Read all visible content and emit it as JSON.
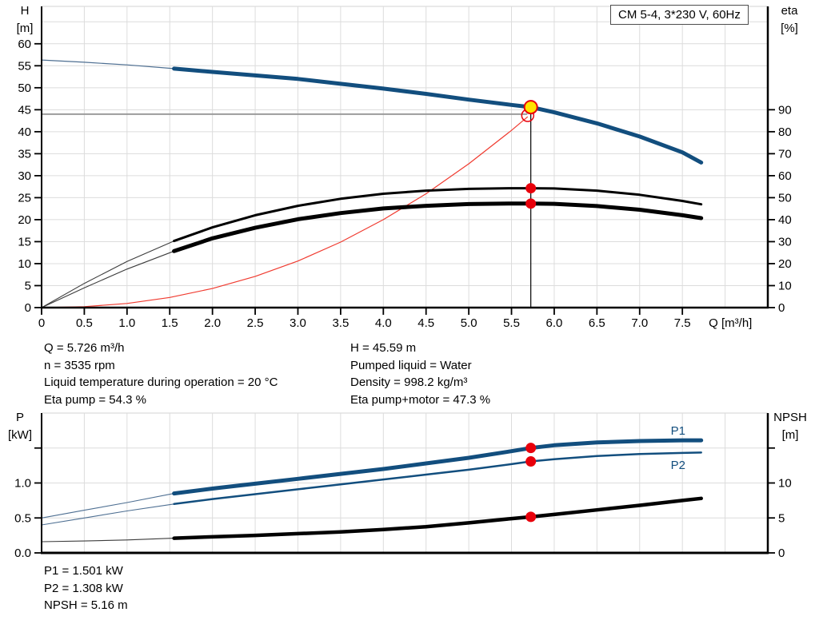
{
  "title_box": {
    "label": "CM 5-4, 3*230 V, 60Hz"
  },
  "info_top_left": [
    "Q = 5.726 m³/h",
    "n = 3535 rpm",
    "Liquid temperature during operation = 20 °C",
    "Eta pump = 54.3 %"
  ],
  "info_top_right": [
    "H = 45.59 m",
    "Pumped liquid = Water",
    "Density = 998.2 kg/m³",
    "Eta pump+motor = 47.3 %"
  ],
  "info_bottom": [
    "P1 = 1.501 kW",
    "P2 = 1.308 kW",
    "NPSH = 5.16 m"
  ],
  "colors": {
    "curve_blue": "#124e7e",
    "marker_red": "#e8000b",
    "system_red": "#f03b30",
    "duty_yellow": "#ffe400",
    "grid": "#dcdcdc",
    "gray_line": "#9b9b9b",
    "thin_black": "#3c3c3c"
  },
  "chart_data": [
    {
      "name": "qh-eta-chart",
      "type": "line",
      "title": "CM 5-4, 3*230 V, 60Hz",
      "x_axis": {
        "label": "Q [m³/h]",
        "min": 0,
        "max": 8.5,
        "ticks": [
          0,
          0.5,
          1,
          1.5,
          2,
          2.5,
          3,
          3.5,
          4,
          4.5,
          5,
          5.5,
          6,
          6.5,
          7,
          7.5
        ],
        "tick_labels": [
          "0",
          "0.5",
          "1.0",
          "1.5",
          "2.0",
          "2.5",
          "3.0",
          "3.5",
          "4.0",
          "4.5",
          "5.0",
          "5.5",
          "6.0",
          "6.5",
          "7.0",
          "7.5"
        ],
        "grid": [
          0.5,
          1,
          1.5,
          2,
          2.5,
          3,
          3.5,
          4,
          4.5,
          5,
          5.5,
          6,
          6.5,
          7,
          7.5,
          8
        ]
      },
      "y_left": {
        "label": "H [m]",
        "label_line1": "H",
        "label_line2": "[m]",
        "min": 0,
        "max": 68.5,
        "ticks": [
          0,
          5,
          10,
          15,
          20,
          25,
          30,
          35,
          40,
          45,
          50,
          55,
          60
        ],
        "tick_labels": [
          "0",
          "5",
          "10",
          "15",
          "20",
          "25",
          "30",
          "35",
          "40",
          "45",
          "50",
          "55",
          "60"
        ],
        "unlabeled_ticks": [],
        "grid": [
          5,
          10,
          15,
          20,
          25,
          30,
          35,
          40,
          45,
          50,
          55,
          60,
          65
        ]
      },
      "y_right": {
        "label": "eta [%]",
        "label_line1": "eta",
        "label_line2": "[%]",
        "min": 0,
        "max": 137,
        "ticks": [
          0,
          10,
          20,
          30,
          40,
          50,
          60,
          70,
          80,
          90
        ],
        "tick_labels": [
          "0",
          "10",
          "20",
          "30",
          "40",
          "50",
          "60",
          "70",
          "80",
          "90"
        ],
        "unlabeled_ticks": []
      },
      "series": [
        {
          "name": "system-curve",
          "axis": "left",
          "color": "#f03b30",
          "width": 1.2,
          "x": [
            0,
            0.5,
            1,
            1.5,
            2,
            2.5,
            3,
            3.5,
            4,
            4.5,
            5,
            5.5,
            5.69
          ],
          "y": [
            0,
            0.21,
            0.95,
            2.31,
            4.35,
            7.11,
            10.6,
            14.9,
            20,
            25.9,
            32.7,
            40.3,
            43.4
          ]
        },
        {
          "name": "eta-pump-curve",
          "axis": "right",
          "color": "#000000",
          "width": 3,
          "thin_width": 1.1,
          "thin_color": "#3c3c3c",
          "thick_from": 1.55,
          "x": [
            0,
            0.5,
            1,
            1.55,
            2,
            2.5,
            3,
            3.5,
            4,
            4.5,
            5,
            5.5,
            5.726,
            6,
            6.5,
            7,
            7.5,
            7.72
          ],
          "y": [
            0,
            11,
            21,
            30.3,
            36.5,
            42,
            46.3,
            49.5,
            51.8,
            53.2,
            54,
            54.3,
            54.3,
            54.2,
            53.2,
            51.3,
            48.5,
            47
          ]
        },
        {
          "name": "eta-pump-motor-curve",
          "axis": "right",
          "color": "#000000",
          "width": 5,
          "thin_width": 1.1,
          "thin_color": "#3c3c3c",
          "thick_from": 1.55,
          "x": [
            0,
            0.5,
            1,
            1.55,
            2,
            2.5,
            3,
            3.5,
            4,
            4.5,
            5,
            5.5,
            5.726,
            6,
            6.5,
            7,
            7.5,
            7.72
          ],
          "y": [
            0,
            9,
            17.5,
            25.7,
            31.5,
            36.3,
            40.2,
            43,
            45.1,
            46.3,
            47.1,
            47.35,
            47.3,
            47.2,
            46.2,
            44.5,
            42,
            40.7
          ]
        },
        {
          "name": "qh-curve",
          "axis": "left",
          "color": "#124e7e",
          "width": 5,
          "thin_width": 1.2,
          "thin_color": "#4e6f92",
          "thick_from": 1.55,
          "x": [
            0,
            0.5,
            1,
            1.55,
            2,
            2.5,
            3,
            3.5,
            4,
            4.5,
            5,
            5.5,
            5.726,
            6,
            6.5,
            7,
            7.5,
            7.72
          ],
          "y": [
            56.3,
            55.8,
            55.2,
            54.35,
            53.6,
            52.8,
            52,
            50.9,
            49.8,
            48.6,
            47.3,
            46.1,
            45.59,
            44.4,
            41.9,
            38.9,
            35.3,
            33
          ]
        }
      ],
      "markers": [
        {
          "name": "requested-duty-hline",
          "type": "hline",
          "layer": "under",
          "axis": "left",
          "v": 44,
          "q1": 0,
          "q2": 5.685,
          "color": "#9b9b9b",
          "w": 2
        },
        {
          "name": "duty-vline",
          "type": "vline",
          "layer": "over",
          "axis": "left",
          "q": 5.726,
          "v1": 45.59,
          "v2": 0,
          "color": "#000000",
          "w": 1.2
        },
        {
          "name": "requested-duty-circle",
          "type": "circle",
          "layer": "over",
          "axis": "left",
          "q": 5.69,
          "v": 43.7,
          "r": 7.5,
          "stroke": "#e8000b",
          "w": 1.5
        },
        {
          "name": "duty-eta-pump-dot",
          "type": "dot",
          "layer": "over",
          "axis": "right",
          "q": 5.726,
          "v": 54.3,
          "r": 6.5,
          "fill": "#e8000b"
        },
        {
          "name": "duty-eta-pump-motor-dot",
          "type": "dot",
          "layer": "over",
          "axis": "right",
          "q": 5.726,
          "v": 47.3,
          "r": 6.5,
          "fill": "#e8000b"
        },
        {
          "name": "duty-point",
          "type": "dot",
          "layer": "over",
          "axis": "left",
          "q": 5.726,
          "v": 45.59,
          "r": 8,
          "fill": "#ffe400",
          "stroke": "#e8000b",
          "w": 2,
          "interactable": true
        }
      ]
    },
    {
      "name": "power-npsh-chart",
      "type": "line",
      "x_axis": {
        "label": "",
        "min": 0,
        "max": 8.5,
        "ticks": [],
        "tick_labels": [],
        "grid": [
          0.5,
          1,
          1.5,
          2,
          2.5,
          3,
          3.5,
          4,
          4.5,
          5,
          5.5,
          6,
          6.5,
          7,
          7.5,
          8
        ]
      },
      "y_left": {
        "label": "P [kW]",
        "label_line1": "P",
        "label_line2": "[kW]",
        "min": 0,
        "max": 2,
        "ticks": [
          0,
          0.5,
          1
        ],
        "tick_labels": [
          "0.0",
          "0.5",
          "1.0"
        ],
        "unlabeled_ticks": [
          1.5
        ],
        "grid": [
          0.5,
          1,
          1.5
        ]
      },
      "y_right": {
        "label": "NPSH [m]",
        "label_line1": "NPSH",
        "label_line2": "[m]",
        "min": 0,
        "max": 20,
        "ticks": [
          0,
          5,
          10
        ],
        "tick_labels": [
          "0",
          "5",
          "10"
        ],
        "unlabeled_ticks": [
          15
        ]
      },
      "series": [
        {
          "name": "npsh-curve",
          "axis": "right",
          "color": "#000000",
          "width": 4.5,
          "thin_width": 1.1,
          "thin_color": "#3c3c3c",
          "thick_from": 1.55,
          "x": [
            0,
            0.5,
            1,
            1.55,
            2,
            2.5,
            3,
            3.5,
            4,
            4.5,
            5,
            5.5,
            5.726,
            6,
            6.5,
            7,
            7.5,
            7.72
          ],
          "y": [
            1.6,
            1.7,
            1.85,
            2.1,
            2.3,
            2.5,
            2.75,
            3,
            3.35,
            3.75,
            4.3,
            4.9,
            5.16,
            5.5,
            6.15,
            6.8,
            7.5,
            7.8
          ]
        },
        {
          "name": "p2-curve",
          "axis": "left",
          "color": "#124e7e",
          "width": 2.5,
          "thin_width": 1.1,
          "thin_color": "#4e6f92",
          "thick_from": 1.55,
          "x": [
            0,
            0.5,
            1,
            1.55,
            2,
            2.5,
            3,
            3.5,
            4,
            4.5,
            5,
            5.5,
            5.726,
            6,
            6.5,
            7,
            7.5,
            7.72
          ],
          "y": [
            0.4,
            0.5,
            0.6,
            0.7,
            0.77,
            0.84,
            0.91,
            0.98,
            1.05,
            1.12,
            1.19,
            1.27,
            1.308,
            1.34,
            1.385,
            1.415,
            1.43,
            1.435
          ]
        },
        {
          "name": "p1-curve",
          "axis": "left",
          "color": "#124e7e",
          "width": 5,
          "thin_width": 1.1,
          "thin_color": "#4e6f92",
          "thick_from": 1.55,
          "x": [
            0,
            0.5,
            1,
            1.55,
            2,
            2.5,
            3,
            3.5,
            4,
            4.5,
            5,
            5.5,
            5.726,
            6,
            6.5,
            7,
            7.5,
            7.72
          ],
          "y": [
            0.5,
            0.61,
            0.72,
            0.85,
            0.92,
            0.99,
            1.06,
            1.13,
            1.2,
            1.28,
            1.36,
            1.455,
            1.501,
            1.54,
            1.58,
            1.6,
            1.61,
            1.61
          ]
        }
      ],
      "markers": [
        {
          "name": "duty-p1-dot",
          "type": "dot",
          "layer": "over",
          "axis": "left",
          "q": 5.726,
          "v": 1.501,
          "r": 6.5,
          "fill": "#e8000b"
        },
        {
          "name": "duty-p2-dot",
          "type": "dot",
          "layer": "over",
          "axis": "left",
          "q": 5.726,
          "v": 1.308,
          "r": 6.5,
          "fill": "#e8000b"
        },
        {
          "name": "duty-npsh-dot",
          "type": "dot",
          "layer": "over",
          "axis": "right",
          "q": 5.726,
          "v": 5.16,
          "r": 6.5,
          "fill": "#e8000b"
        },
        {
          "name": "p1-curve-label",
          "type": "text",
          "layer": "over",
          "axis": "left",
          "q": 7.45,
          "v": 1.69,
          "text": "P1",
          "color": "#124e7e"
        },
        {
          "name": "p2-curve-label",
          "type": "text",
          "layer": "over",
          "axis": "left",
          "q": 7.45,
          "v": 1.2,
          "text": "P2",
          "color": "#124e7e"
        }
      ]
    }
  ]
}
